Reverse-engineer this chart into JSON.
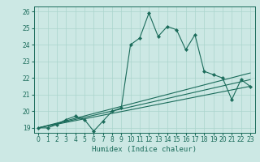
{
  "xlabel": "Humidex (Indice chaleur)",
  "bg_color": "#cce8e4",
  "grid_color": "#aad4cc",
  "line_color": "#1a6b5a",
  "xlim": [
    -0.5,
    23.5
  ],
  "ylim": [
    18.7,
    26.3
  ],
  "xticks": [
    0,
    1,
    2,
    3,
    4,
    5,
    6,
    7,
    8,
    9,
    10,
    11,
    12,
    13,
    14,
    15,
    16,
    17,
    18,
    19,
    20,
    21,
    22,
    23
  ],
  "yticks": [
    19,
    20,
    21,
    22,
    23,
    24,
    25,
    26
  ],
  "line1_x": [
    0,
    1,
    2,
    3,
    4,
    5,
    6,
    7,
    8,
    9,
    10,
    11,
    12,
    13,
    14,
    15,
    16,
    17,
    18,
    19,
    20,
    21,
    22,
    23
  ],
  "line1_y": [
    19.0,
    19.0,
    19.2,
    19.5,
    19.7,
    19.5,
    18.8,
    19.4,
    20.0,
    20.2,
    24.0,
    24.4,
    25.9,
    24.5,
    25.1,
    24.9,
    23.7,
    24.6,
    22.4,
    22.2,
    22.0,
    20.7,
    21.9,
    21.5
  ],
  "line2_x": [
    0,
    23
  ],
  "line2_y": [
    19.0,
    22.3
  ],
  "line3_x": [
    0,
    23
  ],
  "line3_y": [
    19.0,
    21.9
  ],
  "line4_x": [
    0,
    23
  ],
  "line4_y": [
    19.0,
    21.5
  ]
}
